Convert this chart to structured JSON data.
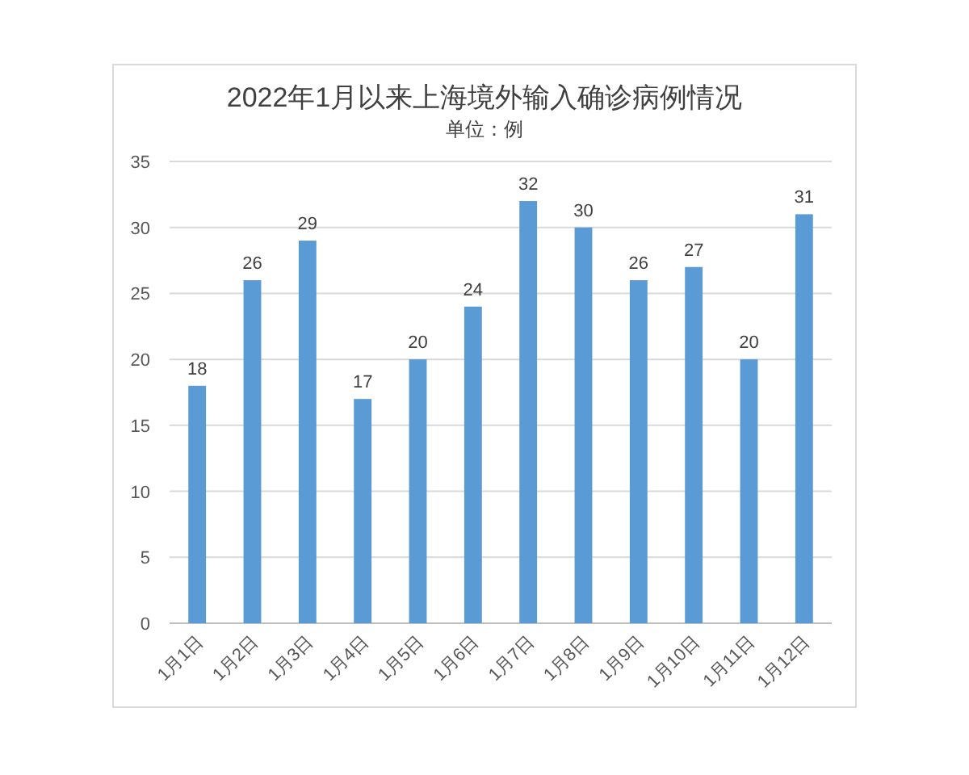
{
  "chart_data": {
    "type": "bar",
    "title": "2022年1月以来上海境外输入确诊病例情况",
    "subtitle": "单位：例",
    "categories": [
      "1月1日",
      "1月2日",
      "1月3日",
      "1月4日",
      "1月5日",
      "1月6日",
      "1月7日",
      "1月8日",
      "1月9日",
      "1月10日",
      "1月11日",
      "1月12日"
    ],
    "values": [
      18,
      26,
      29,
      17,
      20,
      24,
      32,
      30,
      26,
      27,
      20,
      31
    ],
    "color": "#5b9bd5",
    "ylim": [
      0,
      35
    ],
    "yticks": [
      0,
      5,
      10,
      15,
      20,
      25,
      30,
      35
    ],
    "grid": "y",
    "data_labels": true
  }
}
